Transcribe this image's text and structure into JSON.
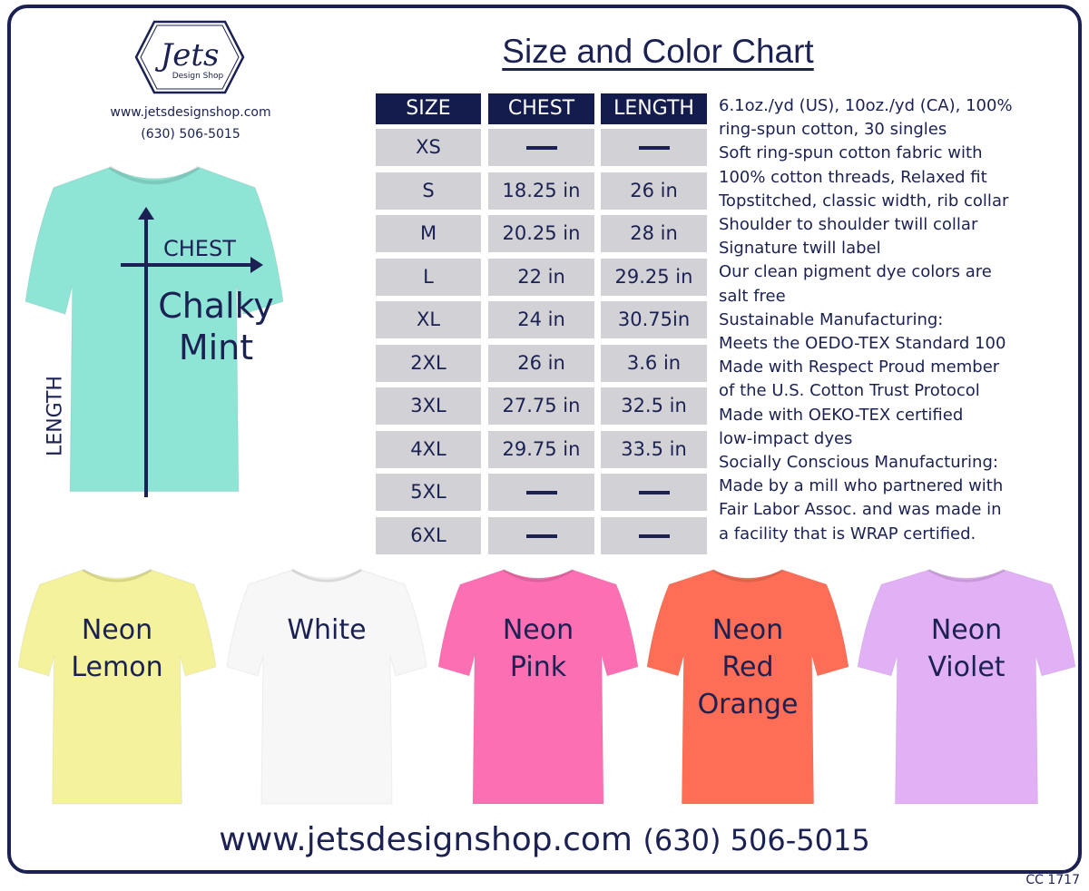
{
  "logo": {
    "text": "Jets",
    "subtext": "Design Shop"
  },
  "header": {
    "website": "www.jetsdesignshop.com",
    "phone": "(630) 506-5015"
  },
  "title": "Size and Color Chart",
  "table": {
    "headers": [
      "SIZE",
      "CHEST",
      "LENGTH"
    ],
    "rows": [
      [
        "XS",
        "—",
        "—"
      ],
      [
        "S",
        "18.25 in",
        "26 in"
      ],
      [
        "M",
        "20.25 in",
        "28 in"
      ],
      [
        "L",
        "22 in",
        "29.25 in"
      ],
      [
        "XL",
        "24 in",
        "30.75in"
      ],
      [
        "2XL",
        "26 in",
        "3.6 in"
      ],
      [
        "3XL",
        "27.75 in",
        "32.5 in"
      ],
      [
        "4XL",
        "29.75 in",
        "33.5 in"
      ],
      [
        "5XL",
        "—",
        "—"
      ],
      [
        "6XL",
        "—",
        "—"
      ]
    ]
  },
  "specs": [
    "6.1oz./yd (US), 10oz./yd (CA), 100%",
    "ring-spun cotton, 30 singles",
    "Soft ring-spun cotton fabric with",
    "100% cotton threads, Relaxed fit",
    "Topstitched, classic width, rib collar",
    "Shoulder to shoulder twill collar",
    "Signature twill label",
    "Our clean pigment dye colors are",
    "salt free",
    "Sustainable Manufacturing:",
    "Meets the OEDO-TEX Standard 100",
    "Made with Respect Proud member",
    "of the U.S. Cotton Trust Protocol",
    "Made with OEKO-TEX certified",
    "low-impact dyes",
    "Socially Conscious Manufacturing:",
    "Made by a mill who partnered with",
    "Fair Labor Assoc. and was made in",
    "a facility that is WRAP certified."
  ],
  "main_shirt": {
    "lines": [
      "Chalky",
      "Mint"
    ],
    "color": "#8fe5d5",
    "chest_label": "CHEST",
    "length_label": "LENGTH"
  },
  "shirts": [
    {
      "lines": [
        "Neon",
        "Lemon"
      ],
      "color": "#f4f29c"
    },
    {
      "lines": [
        "White"
      ],
      "color": "#f7f7f7"
    },
    {
      "lines": [
        "Neon",
        "Pink"
      ],
      "color": "#fd6fb3"
    },
    {
      "lines": [
        "Neon",
        "Red",
        "Orange"
      ],
      "color": "#fe6e56"
    },
    {
      "lines": [
        "Neon",
        "Violet"
      ],
      "color": "#e2b0f5"
    }
  ],
  "footer": {
    "website": "www.jetsdesignshop.com",
    "phone": "(630) 506-5015"
  },
  "code": "CC 1717",
  "colors": {
    "navy": "#1b2152",
    "header_bg": "#131c4d",
    "cell_bg": "#d1d1d6"
  }
}
